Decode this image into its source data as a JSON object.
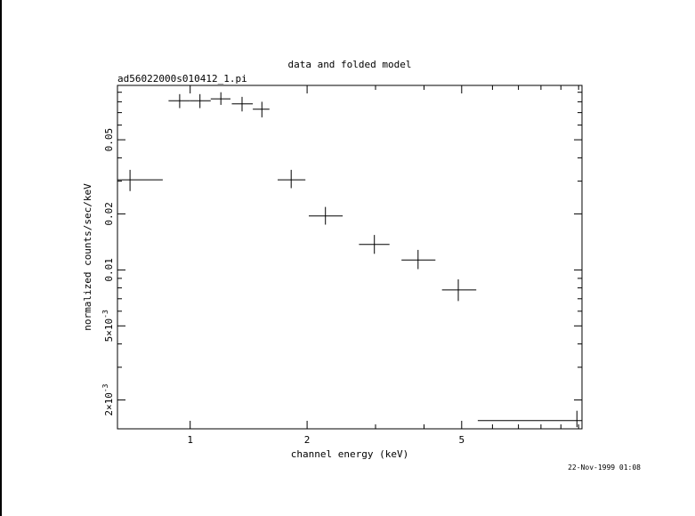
{
  "chart_data": {
    "type": "scatter",
    "title": "data and folded model",
    "subtitle": "ad56022000s010412_1.pi",
    "xlabel": "channel energy (keV)",
    "ylabel": "normalized counts/sec/keV",
    "x_scale": "log",
    "y_scale": "log",
    "xlim": [
      0.65,
      10.2
    ],
    "ylim": [
      0.0014,
      0.098
    ],
    "x_ticks": [
      {
        "value": 1,
        "label": "1"
      },
      {
        "value": 2,
        "label": "2"
      },
      {
        "value": 5,
        "label": "5"
      }
    ],
    "y_ticks": [
      {
        "value": 0.002,
        "label": "2×10-3",
        "base": "2×10",
        "exp": "-3"
      },
      {
        "value": 0.005,
        "label": "5×10-3",
        "base": "5×10",
        "exp": "-3"
      },
      {
        "value": 0.01,
        "label": "0.01"
      },
      {
        "value": 0.02,
        "label": "0.02"
      },
      {
        "value": 0.05,
        "label": "0.05"
      }
    ],
    "points": [
      {
        "x": 0.7,
        "y": 0.0305,
        "xlo": 0.65,
        "xhi": 0.85,
        "ylo": 0.0265,
        "yhi": 0.0345
      },
      {
        "x": 0.94,
        "y": 0.081,
        "xlo": 0.88,
        "xhi": 1.0,
        "ylo": 0.074,
        "yhi": 0.088
      },
      {
        "x": 1.06,
        "y": 0.081,
        "xlo": 1.0,
        "xhi": 1.13,
        "ylo": 0.074,
        "yhi": 0.088
      },
      {
        "x": 1.2,
        "y": 0.083,
        "xlo": 1.13,
        "xhi": 1.27,
        "ylo": 0.077,
        "yhi": 0.09
      },
      {
        "x": 1.36,
        "y": 0.078,
        "xlo": 1.28,
        "xhi": 1.45,
        "ylo": 0.071,
        "yhi": 0.085
      },
      {
        "x": 1.53,
        "y": 0.073,
        "xlo": 1.45,
        "xhi": 1.6,
        "ylo": 0.066,
        "yhi": 0.08
      },
      {
        "x": 1.82,
        "y": 0.0305,
        "xlo": 1.68,
        "xhi": 1.98,
        "ylo": 0.0275,
        "yhi": 0.0345
      },
      {
        "x": 2.23,
        "y": 0.0195,
        "xlo": 2.02,
        "xhi": 2.47,
        "ylo": 0.0175,
        "yhi": 0.0218
      },
      {
        "x": 2.98,
        "y": 0.0137,
        "xlo": 2.72,
        "xhi": 3.26,
        "ylo": 0.0122,
        "yhi": 0.0154
      },
      {
        "x": 3.86,
        "y": 0.0113,
        "xlo": 3.5,
        "xhi": 4.28,
        "ylo": 0.0101,
        "yhi": 0.0128
      },
      {
        "x": 4.9,
        "y": 0.0078,
        "xlo": 4.45,
        "xhi": 5.45,
        "ylo": 0.0068,
        "yhi": 0.0089
      },
      {
        "x": 9.9,
        "y": 0.00155,
        "xlo": 5.5,
        "xhi": 10.2,
        "ylo": 0.00143,
        "yhi": 0.00175
      }
    ]
  },
  "footer": {
    "timestamp": "22-Nov-1999 01:08"
  }
}
